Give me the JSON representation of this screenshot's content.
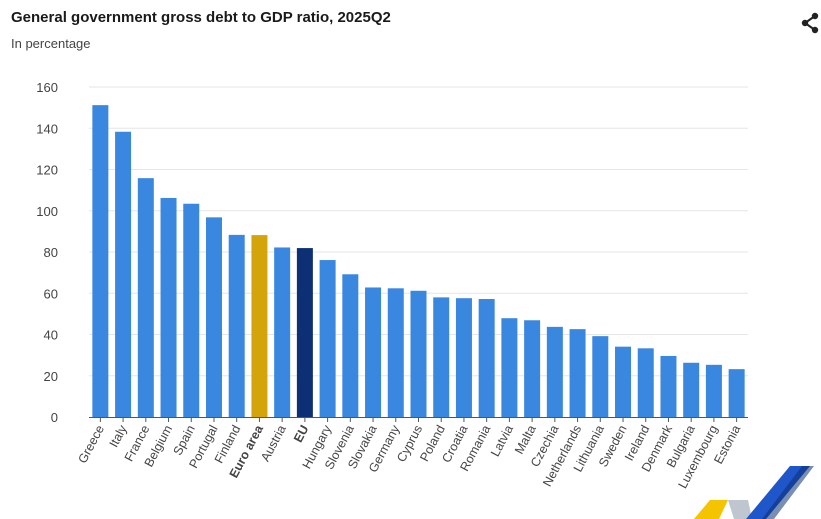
{
  "title": "General government gross debt to GDP ratio, 2025Q2",
  "subtitle": "In percentage",
  "share_icon": "share-icon",
  "colors": {
    "default": "#3a87e0",
    "euro_area": "#d4a50b",
    "eu": "#0d2f73",
    "grid": "#e6e6e6",
    "axis": "#555555"
  },
  "chart_data": {
    "type": "bar",
    "title": "General government gross debt to GDP ratio, 2025Q2",
    "subtitle": "In percentage",
    "xlabel": "",
    "ylabel": "",
    "ylim": [
      0,
      160
    ],
    "yticks": [
      0,
      20,
      40,
      60,
      80,
      100,
      120,
      140,
      160
    ],
    "grid": true,
    "legend": "none",
    "categories": [
      "Greece",
      "Italy",
      "France",
      "Belgium",
      "Spain",
      "Portugal",
      "Finland",
      "Euro area",
      "Austria",
      "EU",
      "Hungary",
      "Slovenia",
      "Slovakia",
      "Germany",
      "Cyprus",
      "Poland",
      "Croatia",
      "Romania",
      "Latvia",
      "Malta",
      "Czechia",
      "Netherlands",
      "Lithuania",
      "Sweden",
      "Ireland",
      "Denmark",
      "Bulgaria",
      "Luxembourg",
      "Estonia"
    ],
    "values": [
      151.2,
      138.3,
      115.8,
      106.2,
      103.4,
      96.8,
      88.3,
      88.2,
      82.2,
      81.9,
      76.1,
      69.2,
      62.8,
      62.4,
      61.2,
      58.0,
      57.6,
      57.2,
      47.9,
      46.9,
      43.7,
      42.6,
      39.2,
      34.1,
      33.3,
      29.6,
      26.3,
      25.3,
      23.2
    ],
    "highlight": {
      "Euro area": "euro_area",
      "EU": "eu"
    },
    "bold_categories": [
      "Euro area",
      "EU"
    ]
  }
}
